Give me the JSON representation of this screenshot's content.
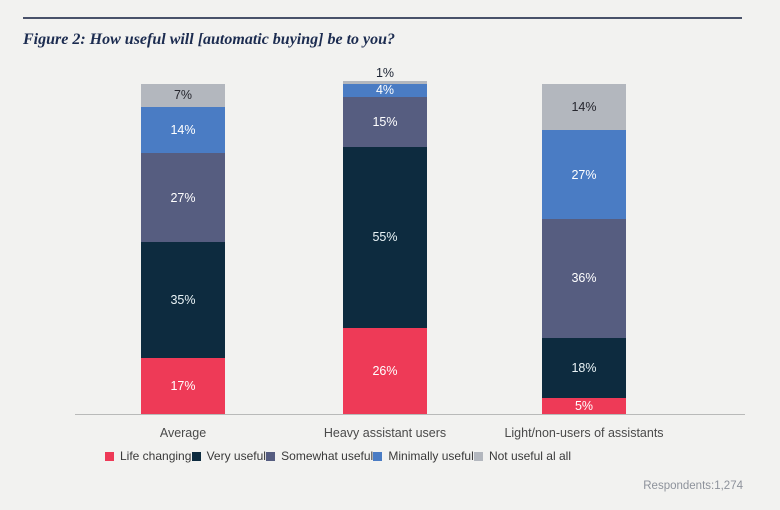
{
  "title": "Figure 2: How useful will [automatic buying] be to you?",
  "footnote": "Respondents:1,274",
  "colors": {
    "background": "#f2f2f0",
    "rule": "#49526a",
    "title_text": "#1c2c50",
    "axis_line": "#b9bab9",
    "category_text": "#4a4a4a",
    "footnote_text": "#8d929b",
    "dark_value_label": "#1c2433"
  },
  "chart_data": {
    "type": "bar",
    "stacked": true,
    "title": "Figure 2: How useful will [automatic buying] be to you?",
    "xlabel": "",
    "ylabel": "",
    "ylim": [
      0,
      100
    ],
    "grid": false,
    "legend_position": "bottom",
    "value_suffix": "%",
    "categories": [
      "Average",
      "Heavy assistant users",
      "Light/non-users of assistants"
    ],
    "series": [
      {
        "name": "Life changing",
        "color": "#ee3a57",
        "label_color": "#ffffff",
        "values": [
          17,
          26,
          5
        ]
      },
      {
        "name": "Very useful",
        "color": "#0d2b3f",
        "label_color": "#e9f3f6",
        "values": [
          35,
          55,
          18
        ]
      },
      {
        "name": "Somewhat useful",
        "color": "#565d80",
        "label_color": "#ffffff",
        "values": [
          27,
          15,
          36
        ]
      },
      {
        "name": "Minimally useful",
        "color": "#4a7cc4",
        "label_color": "#ffffff",
        "values": [
          14,
          4,
          27
        ]
      },
      {
        "name": "Not useful al all",
        "color": "#b3b7be",
        "label_color": "#26262e",
        "values": [
          7,
          1,
          14
        ]
      }
    ],
    "annotations": [
      "Respondents:1,274"
    ]
  }
}
